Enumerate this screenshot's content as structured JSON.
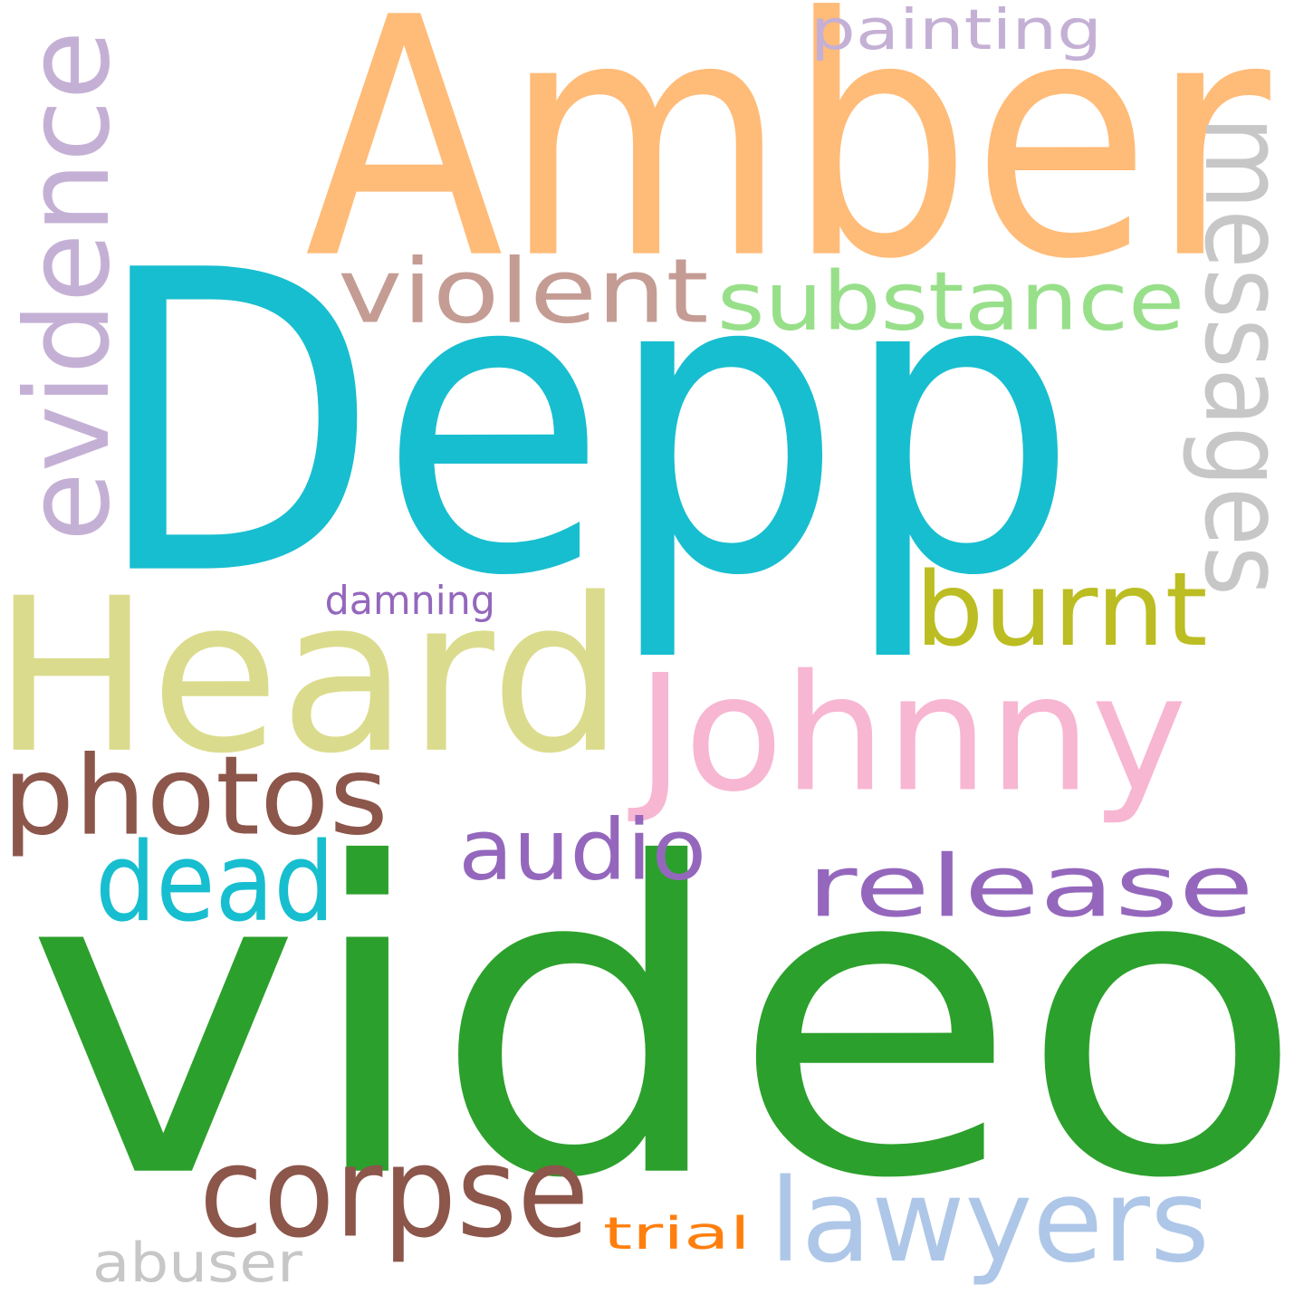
{
  "words": {
    "video": {
      "text": "video",
      "color": "#2ca02c"
    },
    "depp": {
      "text": "Depp",
      "color": "#17becf"
    },
    "amber": {
      "text": "Amber",
      "color": "#ffbb78"
    },
    "heard": {
      "text": "Heard",
      "color": "#dbdb8d"
    },
    "johnny": {
      "text": "Johnny",
      "color": "#f7b6d2"
    },
    "photos": {
      "text": "photos",
      "color": "#8c564b"
    },
    "corpse": {
      "text": "corpse",
      "color": "#8c564b"
    },
    "lawyers": {
      "text": "lawyers",
      "color": "#aec7e8"
    },
    "release": {
      "text": "release",
      "color": "#9467bd"
    },
    "substance": {
      "text": "substance",
      "color": "#98df8a"
    },
    "violent": {
      "text": "violent",
      "color": "#c49c94"
    },
    "burnt": {
      "text": "burnt",
      "color": "#bcbd22"
    },
    "dead": {
      "text": "dead",
      "color": "#17becf"
    },
    "audio": {
      "text": "audio",
      "color": "#9467bd"
    },
    "abuser": {
      "text": "abuser",
      "color": "#c7c7c7"
    },
    "trial": {
      "text": "trial",
      "color": "#ff7f0e"
    },
    "damning": {
      "text": "damning",
      "color": "#9467bd"
    },
    "painting": {
      "text": "painting",
      "color": "#c5b0d5"
    },
    "evidence": {
      "text": "evidence",
      "color": "#c5b0d5"
    },
    "messages": {
      "text": "messages",
      "color": "#c7c7c7"
    }
  }
}
